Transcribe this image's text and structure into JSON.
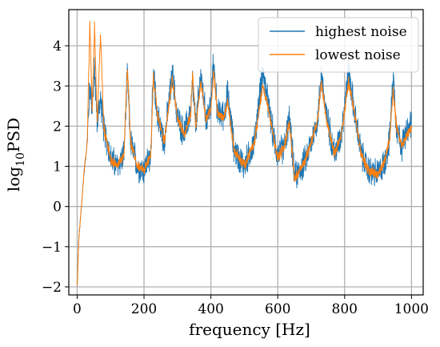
{
  "chart_data": {
    "type": "line",
    "xlabel": "frequency [Hz]",
    "ylabel_base": "log",
    "ylabel_sub": "10",
    "ylabel_tail": "PSD",
    "xlim": [
      -25,
      1035
    ],
    "ylim": [
      -2.2,
      4.9
    ],
    "xticks": [
      0,
      200,
      400,
      600,
      800,
      1000
    ],
    "yticks": [
      -2,
      -1,
      0,
      1,
      2,
      3,
      4
    ],
    "ytick_labels": [
      "−2",
      "−1",
      "0",
      "1",
      "2",
      "3",
      "4"
    ],
    "grid": true,
    "legend_position": "top-right",
    "series": [
      {
        "name": "highest noise",
        "color": "#1f77b4",
        "noise_amplitude": 0.45,
        "x": [
          0,
          5,
          10,
          20,
          30,
          38,
          45,
          52,
          60,
          70,
          80,
          90,
          100,
          120,
          140,
          150,
          160,
          180,
          200,
          220,
          228,
          240,
          260,
          285,
          300,
          320,
          340,
          345,
          355,
          370,
          385,
          400,
          408,
          420,
          440,
          450,
          470,
          500,
          530,
          555,
          570,
          590,
          600,
          620,
          635,
          650,
          680,
          700,
          720,
          730,
          745,
          770,
          790,
          812,
          830,
          850,
          870,
          900,
          920,
          935,
          945,
          955,
          970,
          1000
        ],
        "y": [
          -2.0,
          -0.8,
          -0.3,
          0.8,
          1.6,
          3.0,
          2.5,
          3.4,
          2.1,
          2.7,
          1.9,
          1.6,
          1.2,
          1.0,
          1.3,
          3.3,
          1.6,
          1.0,
          0.9,
          1.3,
          3.3,
          2.3,
          1.6,
          3.3,
          2.2,
          1.8,
          2.4,
          3.1,
          2.0,
          3.3,
          2.2,
          2.5,
          3.6,
          2.3,
          2.3,
          2.8,
          1.4,
          1.0,
          1.6,
          3.4,
          2.6,
          1.6,
          1.3,
          1.5,
          2.2,
          0.7,
          1.1,
          1.6,
          2.2,
          3.3,
          2.3,
          1.3,
          1.8,
          3.4,
          2.3,
          1.3,
          0.9,
          0.8,
          1.1,
          1.7,
          3.3,
          2.0,
          1.5,
          2.1
        ]
      },
      {
        "name": "lowest noise",
        "color": "#ff7f0e",
        "noise_amplitude": 0.15,
        "x": [
          0,
          5,
          10,
          20,
          30,
          38,
          45,
          52,
          60,
          70,
          80,
          90,
          100,
          120,
          140,
          150,
          160,
          180,
          200,
          220,
          228,
          240,
          260,
          285,
          300,
          320,
          340,
          345,
          355,
          370,
          385,
          400,
          408,
          420,
          440,
          450,
          470,
          500,
          530,
          555,
          570,
          590,
          600,
          620,
          635,
          650,
          680,
          700,
          720,
          730,
          745,
          770,
          790,
          812,
          830,
          850,
          870,
          900,
          920,
          935,
          945,
          955,
          970,
          1000
        ],
        "y": [
          -2.0,
          -0.8,
          -0.3,
          0.8,
          1.6,
          4.6,
          2.4,
          4.5,
          2.1,
          4.3,
          1.9,
          1.6,
          1.2,
          1.0,
          1.3,
          3.5,
          1.6,
          1.0,
          0.9,
          1.3,
          3.2,
          2.3,
          1.6,
          3.2,
          2.2,
          1.8,
          2.3,
          3.3,
          2.0,
          3.1,
          2.2,
          2.4,
          3.4,
          2.3,
          2.2,
          2.6,
          1.4,
          1.0,
          1.6,
          3.0,
          2.5,
          1.6,
          1.2,
          1.5,
          2.1,
          0.7,
          1.1,
          1.6,
          2.2,
          3.1,
          2.2,
          1.3,
          1.8,
          3.1,
          2.3,
          1.3,
          0.9,
          0.8,
          1.1,
          1.7,
          2.9,
          2.0,
          1.5,
          2.0
        ]
      }
    ]
  }
}
